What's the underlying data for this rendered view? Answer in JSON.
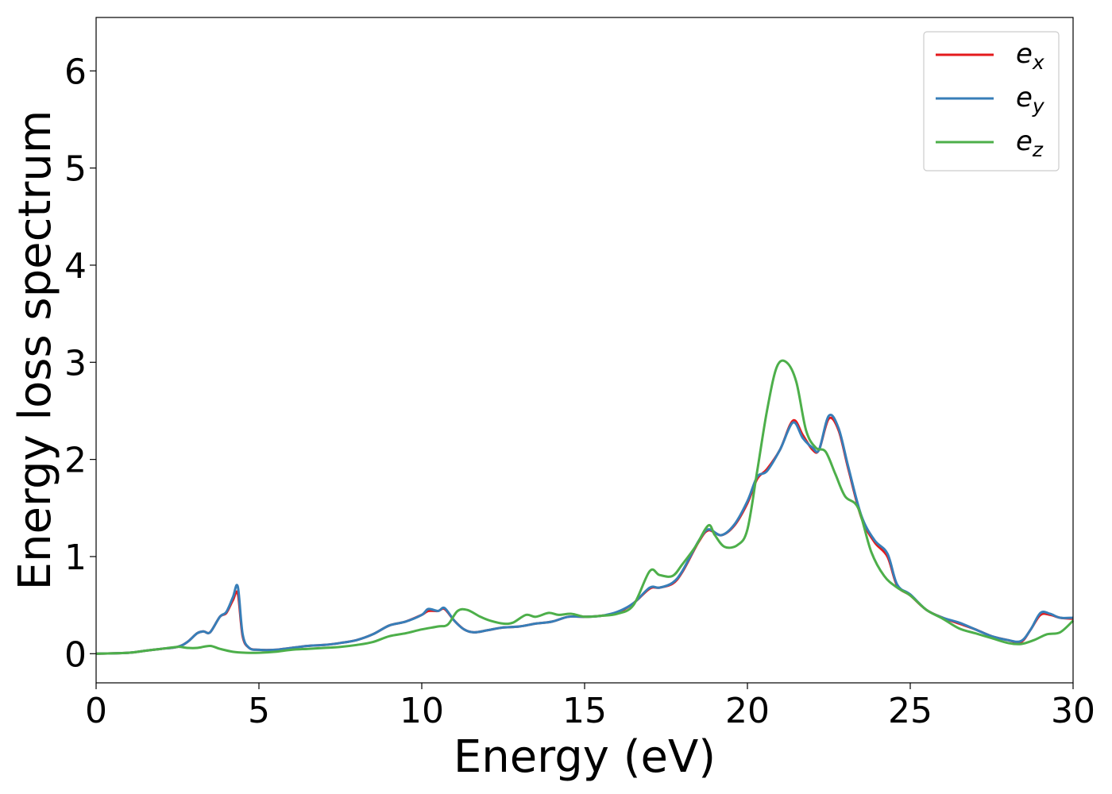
{
  "chart_data": {
    "type": "line",
    "xlabel": "Energy (eV)",
    "ylabel": "Energy loss spectrum",
    "xlim": [
      0,
      30
    ],
    "ylim": [
      -0.3,
      6.55
    ],
    "xticks": [
      0,
      5,
      10,
      15,
      20,
      25,
      30
    ],
    "yticks": [
      0,
      1,
      2,
      3,
      4,
      5,
      6
    ],
    "grid": false,
    "legend_position": "top-right",
    "series": [
      {
        "name": "e",
        "subscript": "x",
        "color": "#e41a1c",
        "x": [
          0,
          1,
          1.5,
          2,
          2.5,
          2.8,
          3.1,
          3.3,
          3.5,
          3.8,
          4.0,
          4.2,
          4.35,
          4.5,
          4.7,
          5.0,
          5.5,
          6,
          6.5,
          7,
          7.5,
          8,
          8.5,
          9,
          9.5,
          10,
          10.2,
          10.5,
          10.7,
          11,
          11.3,
          11.6,
          12,
          12.5,
          13,
          13.5,
          14,
          14.5,
          15,
          15.5,
          16,
          16.5,
          17,
          17.3,
          17.7,
          18,
          18.5,
          18.8,
          19.2,
          19.6,
          20,
          20.3,
          20.6,
          21,
          21.4,
          21.7,
          22.0,
          22.2,
          22.5,
          22.8,
          23.1,
          23.5,
          23.9,
          24.3,
          24.6,
          25,
          25.5,
          26,
          26.5,
          27,
          27.5,
          28,
          28.4,
          28.7,
          29,
          29.3,
          29.6,
          30
        ],
        "y": [
          0,
          0.01,
          0.03,
          0.05,
          0.07,
          0.12,
          0.21,
          0.23,
          0.22,
          0.38,
          0.42,
          0.55,
          0.62,
          0.18,
          0.06,
          0.04,
          0.04,
          0.06,
          0.08,
          0.09,
          0.11,
          0.14,
          0.2,
          0.29,
          0.33,
          0.4,
          0.44,
          0.44,
          0.46,
          0.34,
          0.25,
          0.22,
          0.24,
          0.27,
          0.28,
          0.31,
          0.33,
          0.38,
          0.38,
          0.39,
          0.42,
          0.52,
          0.67,
          0.68,
          0.72,
          0.84,
          1.15,
          1.27,
          1.22,
          1.32,
          1.55,
          1.8,
          1.9,
          2.1,
          2.4,
          2.25,
          2.1,
          2.1,
          2.42,
          2.3,
          1.9,
          1.4,
          1.15,
          1.0,
          0.7,
          0.6,
          0.45,
          0.37,
          0.31,
          0.25,
          0.18,
          0.14,
          0.12,
          0.25,
          0.4,
          0.4,
          0.37,
          0.36
        ]
      },
      {
        "name": "e",
        "subscript": "y",
        "color": "#377eb8",
        "x": [
          0,
          1,
          1.5,
          2,
          2.5,
          2.8,
          3.1,
          3.3,
          3.5,
          3.8,
          4.0,
          4.2,
          4.35,
          4.5,
          4.7,
          5.0,
          5.5,
          6,
          6.5,
          7,
          7.5,
          8,
          8.5,
          9,
          9.5,
          10,
          10.2,
          10.5,
          10.7,
          11,
          11.3,
          11.6,
          12,
          12.5,
          13,
          13.5,
          14,
          14.5,
          15,
          15.5,
          16,
          16.5,
          17,
          17.3,
          17.7,
          18,
          18.5,
          18.8,
          19.2,
          19.6,
          20,
          20.3,
          20.6,
          21,
          21.4,
          21.7,
          22.0,
          22.2,
          22.5,
          22.8,
          23.1,
          23.5,
          23.9,
          24.3,
          24.6,
          25,
          25.5,
          26,
          26.5,
          27,
          27.5,
          28,
          28.4,
          28.7,
          29,
          29.3,
          29.6,
          30
        ],
        "y": [
          0,
          0.01,
          0.03,
          0.05,
          0.07,
          0.12,
          0.21,
          0.23,
          0.22,
          0.38,
          0.43,
          0.58,
          0.69,
          0.2,
          0.06,
          0.04,
          0.04,
          0.06,
          0.08,
          0.09,
          0.11,
          0.14,
          0.2,
          0.29,
          0.33,
          0.4,
          0.46,
          0.44,
          0.47,
          0.34,
          0.25,
          0.22,
          0.24,
          0.27,
          0.28,
          0.31,
          0.33,
          0.38,
          0.38,
          0.39,
          0.43,
          0.52,
          0.68,
          0.68,
          0.73,
          0.85,
          1.16,
          1.28,
          1.22,
          1.33,
          1.57,
          1.82,
          1.88,
          2.1,
          2.38,
          2.22,
          2.12,
          2.1,
          2.45,
          2.32,
          1.92,
          1.42,
          1.17,
          1.03,
          0.71,
          0.61,
          0.45,
          0.37,
          0.32,
          0.25,
          0.18,
          0.14,
          0.13,
          0.25,
          0.42,
          0.41,
          0.37,
          0.37
        ]
      },
      {
        "name": "e",
        "subscript": "z",
        "color": "#4daf4a",
        "x": [
          0,
          1,
          1.5,
          2,
          2.5,
          2.8,
          3.1,
          3.5,
          3.8,
          4.2,
          4.6,
          5.0,
          5.5,
          6,
          6.5,
          7,
          7.5,
          8,
          8.5,
          9,
          9.5,
          10,
          10.5,
          10.8,
          11.1,
          11.4,
          11.8,
          12.1,
          12.5,
          12.8,
          13.2,
          13.5,
          13.9,
          14.2,
          14.6,
          15,
          15.5,
          16,
          16.5,
          17,
          17.3,
          17.7,
          18,
          18.4,
          18.8,
          19.0,
          19.3,
          19.7,
          20,
          20.3,
          20.6,
          20.9,
          21.2,
          21.5,
          21.8,
          22.1,
          22.4,
          22.7,
          23.0,
          23.4,
          23.8,
          24.2,
          24.6,
          25,
          25.5,
          26,
          26.5,
          27,
          27.5,
          28,
          28.4,
          28.8,
          29.2,
          29.6,
          30
        ],
        "y": [
          0,
          0.01,
          0.03,
          0.05,
          0.07,
          0.06,
          0.06,
          0.08,
          0.05,
          0.02,
          0.01,
          0.01,
          0.02,
          0.04,
          0.05,
          0.06,
          0.07,
          0.09,
          0.12,
          0.18,
          0.21,
          0.25,
          0.28,
          0.3,
          0.44,
          0.45,
          0.38,
          0.34,
          0.31,
          0.32,
          0.4,
          0.38,
          0.42,
          0.4,
          0.41,
          0.38,
          0.39,
          0.41,
          0.5,
          0.85,
          0.81,
          0.8,
          0.92,
          1.1,
          1.32,
          1.22,
          1.1,
          1.12,
          1.28,
          1.88,
          2.5,
          2.95,
          3.0,
          2.8,
          2.3,
          2.12,
          2.08,
          1.85,
          1.62,
          1.5,
          1.05,
          0.8,
          0.68,
          0.6,
          0.45,
          0.36,
          0.26,
          0.21,
          0.16,
          0.11,
          0.1,
          0.14,
          0.2,
          0.22,
          0.34
        ]
      }
    ]
  }
}
